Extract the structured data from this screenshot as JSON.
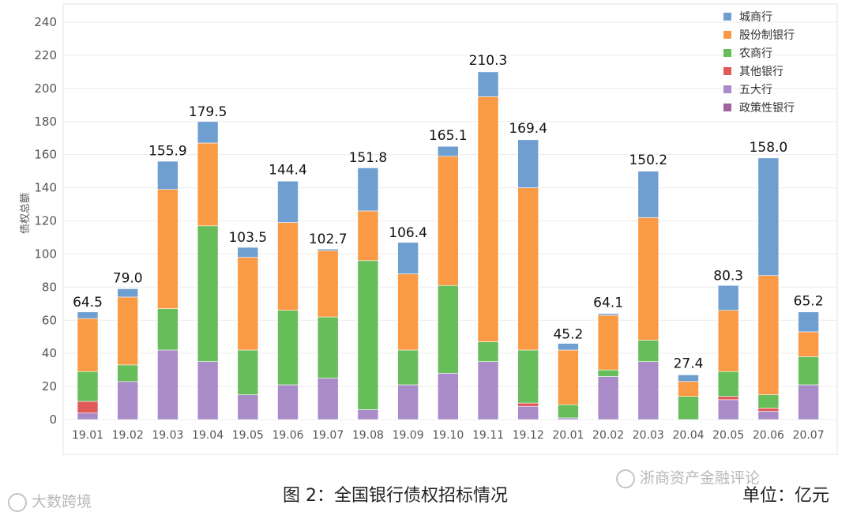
{
  "chart_data": {
    "type": "stacked-bar",
    "title": "图 2：全国银行债权招标情况",
    "unit_label": "单位：亿元",
    "ylabel": "债权总额",
    "xlabel": "",
    "ylim": [
      0,
      240
    ],
    "yticks": [
      0,
      20,
      40,
      60,
      80,
      100,
      120,
      140,
      160,
      180,
      200,
      220,
      240
    ],
    "grid": true,
    "legend_position": "top-right",
    "categories": [
      "19.01",
      "19.02",
      "19.03",
      "19.04",
      "19.05",
      "19.06",
      "19.07",
      "19.08",
      "19.09",
      "19.10",
      "19.11",
      "19.12",
      "20.01",
      "20.02",
      "20.03",
      "20.04",
      "20.05",
      "20.06",
      "20.07"
    ],
    "totals": [
      "64.5",
      "79.0",
      "155.9",
      "179.5",
      "103.5",
      "144.4",
      "102.7",
      "151.8",
      "106.4",
      "165.1",
      "210.3",
      "169.4",
      "45.2",
      "64.1",
      "150.2",
      "27.4",
      "80.3",
      "158.0",
      "65.2"
    ],
    "series": [
      {
        "name": "政策性银行",
        "color": "#a0639b",
        "values": [
          0,
          0,
          0,
          0,
          0,
          0,
          0,
          0,
          0,
          0,
          0,
          0,
          0,
          0,
          0,
          0,
          0,
          0,
          0
        ]
      },
      {
        "name": "五大行",
        "color": "#a98bc7",
        "values": [
          4,
          23,
          42,
          35,
          15,
          21,
          25,
          6,
          21,
          28,
          35,
          8,
          1,
          26,
          35,
          0,
          12,
          5,
          21
        ]
      },
      {
        "name": "其他银行",
        "color": "#e05a5a",
        "values": [
          7,
          0,
          0,
          0,
          0,
          0,
          0,
          0,
          0,
          0,
          0,
          2,
          0,
          0,
          0,
          0,
          2,
          2,
          0
        ]
      },
      {
        "name": "农商行",
        "color": "#67bd5a",
        "values": [
          18,
          10,
          25,
          82,
          27,
          45,
          37,
          90,
          21,
          53,
          12,
          32,
          8,
          4,
          13,
          14,
          15,
          8,
          17
        ]
      },
      {
        "name": "股份制银行",
        "color": "#fb9a45",
        "values": [
          32,
          41,
          72,
          50,
          56,
          53,
          40,
          30,
          46,
          78,
          148,
          98,
          33,
          33,
          74,
          9,
          37,
          72,
          15
        ]
      },
      {
        "name": "城商行",
        "color": "#6f9fd0",
        "values": [
          4,
          5,
          17,
          13,
          6,
          25,
          1,
          26,
          19,
          6,
          15,
          29,
          4,
          1,
          28,
          4,
          15,
          71,
          12
        ]
      }
    ]
  },
  "watermarks": {
    "left": "大数跨境",
    "right": "浙商资产金融评论"
  }
}
